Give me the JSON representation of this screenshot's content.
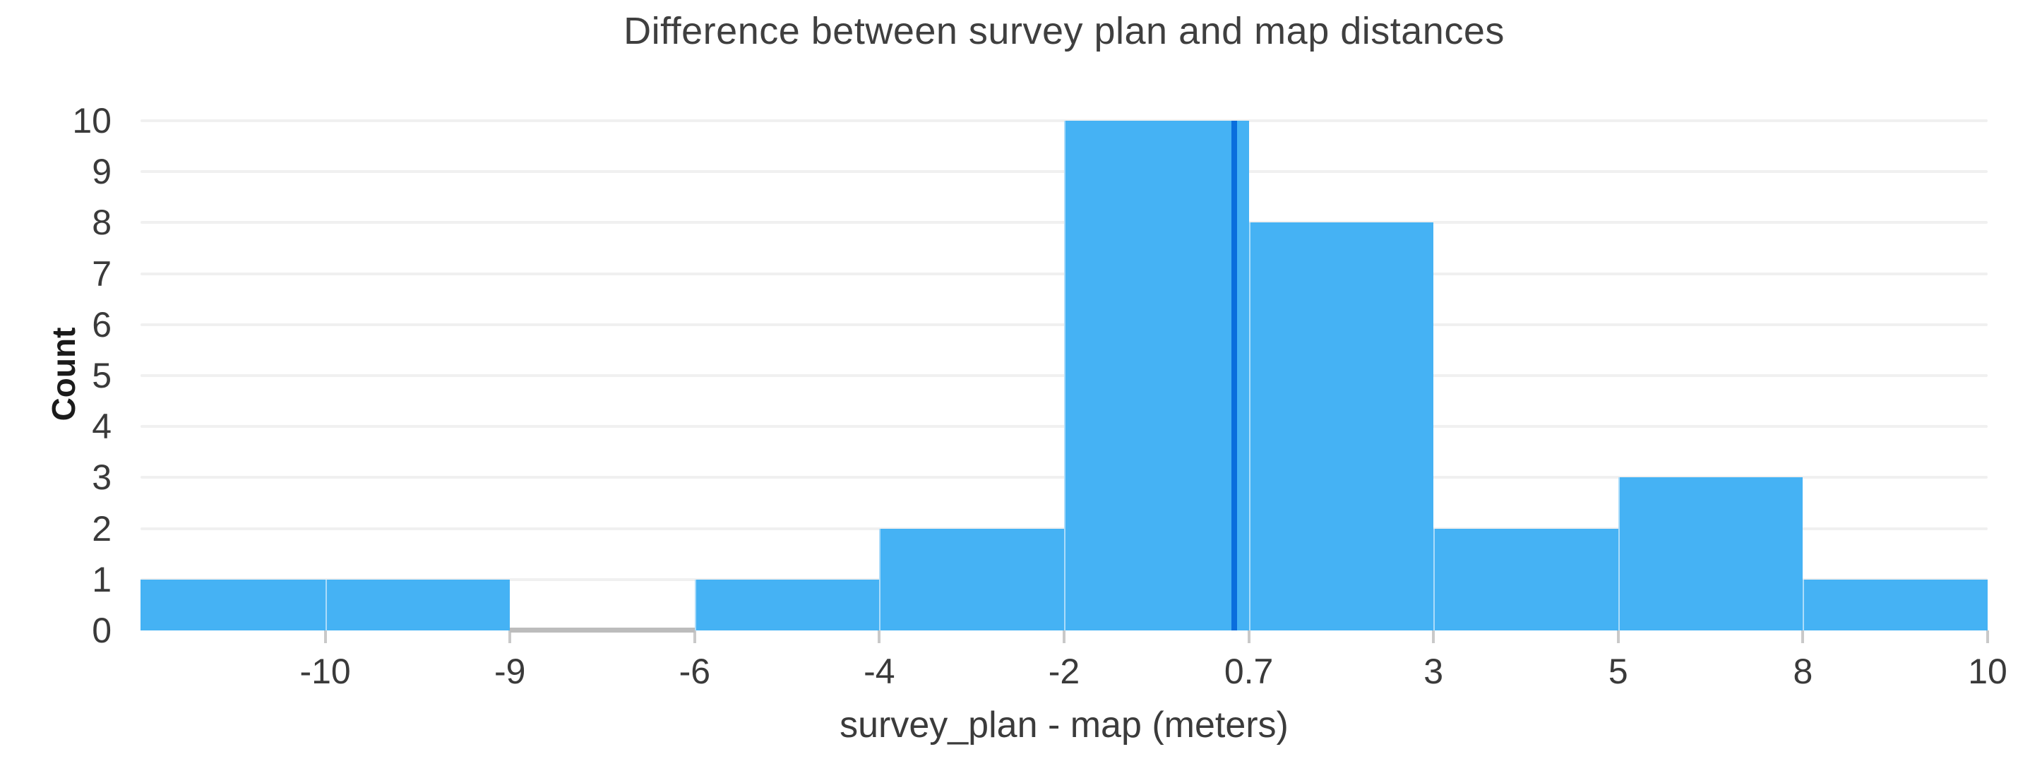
{
  "title": "Difference between survey plan and map distances",
  "x_axis": {
    "label": "survey_plan - map (meters)",
    "tick_labels": [
      "-10",
      "-9",
      "-6",
      "-4",
      "-2",
      "0.7",
      "3",
      "5",
      "8",
      "10"
    ]
  },
  "y_axis": {
    "label": "Count",
    "tick_labels": [
      "0",
      "1",
      "2",
      "3",
      "4",
      "5",
      "6",
      "7",
      "8",
      "9",
      "10"
    ],
    "min": 0,
    "max": 10
  },
  "chart_data": {
    "type": "bar",
    "subtype": "histogram",
    "title": "Difference between survey plan and map distances",
    "xlabel": "survey_plan - map (meters)",
    "ylabel": "Count",
    "ylim": [
      0,
      10
    ],
    "grid": "horizontal",
    "legend": "none",
    "bin_right_edges": [
      -10,
      -9,
      -6,
      -4,
      -2,
      0.7,
      3,
      5,
      8,
      10
    ],
    "bin_right_edge_labels": [
      "-10",
      "-9",
      "-6",
      "-4",
      "-2",
      "0.7",
      "3",
      "5",
      "8",
      "10"
    ],
    "first_bin_left_edge_labeled": false,
    "counts": [
      1,
      1,
      0,
      1,
      2,
      10,
      8,
      2,
      3,
      1
    ],
    "zero_count_bins_drawn_as": "gray baseline segment",
    "vertical_marker": {
      "approx_x_value": 0.5,
      "x_fraction_of_plot": 0.592
    }
  },
  "colors": {
    "bar_fill": "#45b2f4",
    "bar_seam": "rgba(255,255,255,0.55)",
    "marker_line": "#0a6edd",
    "zero_count_bar": "#bcbcbc",
    "gridline": "#f0f0f0",
    "tick_mark": "#c9c9c9",
    "title_text": "#3f3f3f",
    "axis_label_text": "#3b3b3b",
    "y_axis_title_text": "#1b1b1b",
    "tick_label_text": "#3a3a3a",
    "background": "#ffffff"
  }
}
